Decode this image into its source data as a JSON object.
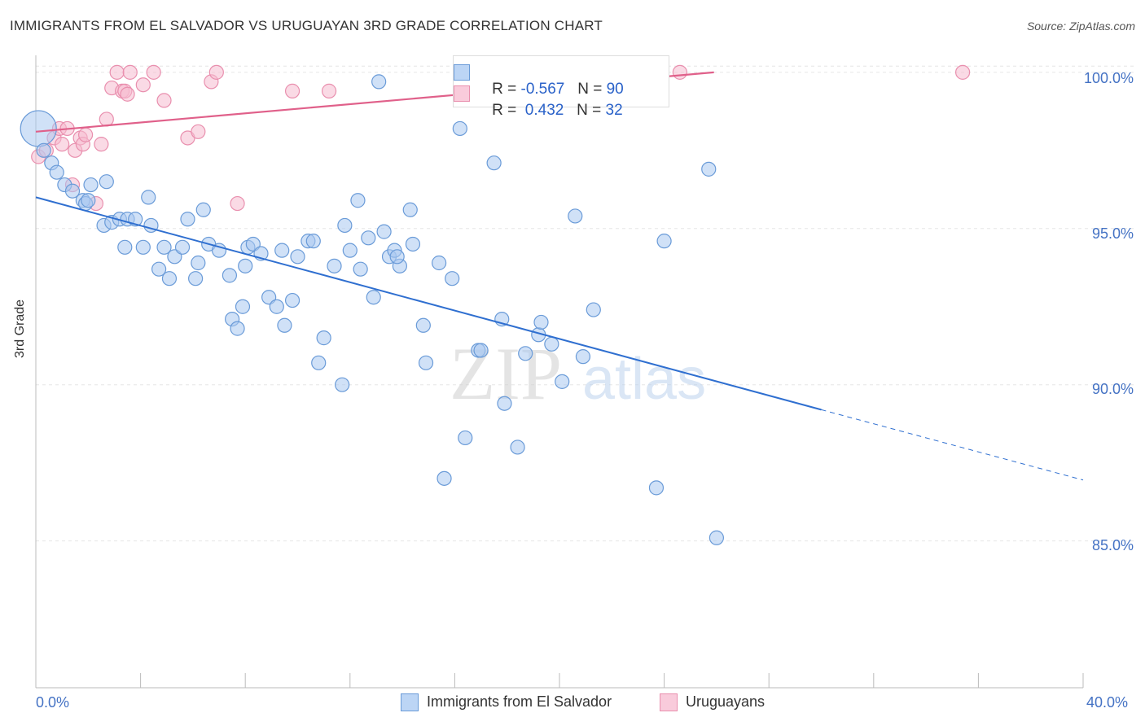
{
  "header": {
    "title": "IMMIGRANTS FROM EL SALVADOR VS URUGUAYAN 3RD GRADE CORRELATION CHART",
    "source": "Source: ZipAtlas.com"
  },
  "legend_top": {
    "rows": [
      {
        "r_label": "R = ",
        "r_value": "-0.567",
        "n_label": "N = ",
        "n_value": "90"
      },
      {
        "r_label": "R = ",
        "r_value": "0.432",
        "n_label": "N = ",
        "n_value": "32"
      }
    ]
  },
  "watermark": {
    "zip": "ZIP",
    "atlas": "atlas"
  },
  "colors": {
    "blue_fill": "#aac8f0",
    "blue_stroke": "#6a9bd8",
    "blue_line": "#2f6fd0",
    "pink_fill": "#f6bcd0",
    "pink_stroke": "#e98fae",
    "pink_line": "#e0608a",
    "tick_text": "#4472c4",
    "grid": "#e6e6e6"
  },
  "chart_data": {
    "type": "scatter",
    "title": "IMMIGRANTS FROM EL SALVADOR VS URUGUAYAN 3RD GRADE CORRELATION CHART",
    "xlabel": "",
    "ylabel": "3rd Grade",
    "xlim": [
      0,
      40
    ],
    "ylim": [
      80.3,
      100.7
    ],
    "x_tick_labels": [
      "0.0%",
      "40.0%"
    ],
    "y_ticks": [
      85,
      90,
      95,
      100
    ],
    "y_tick_labels": [
      "85.0%",
      "90.0%",
      "95.0%",
      "100.0%"
    ],
    "grid": true,
    "legend_position": "bottom",
    "series": [
      {
        "name": "Immigrants from El Salvador",
        "color": "#aac8f0",
        "points": [
          [
            0.1,
            98.2
          ],
          [
            0.3,
            97.5
          ],
          [
            0.6,
            97.1
          ],
          [
            0.8,
            96.8
          ],
          [
            1.1,
            96.4
          ],
          [
            1.4,
            96.2
          ],
          [
            1.8,
            95.9
          ],
          [
            1.9,
            95.8
          ],
          [
            2.1,
            96.4
          ],
          [
            2.7,
            96.5
          ],
          [
            2.6,
            95.1
          ],
          [
            2.9,
            95.2
          ],
          [
            3.2,
            95.3
          ],
          [
            3.4,
            94.4
          ],
          [
            3.5,
            95.3
          ],
          [
            3.8,
            95.3
          ],
          [
            4.1,
            94.4
          ],
          [
            4.3,
            96.0
          ],
          [
            4.4,
            95.1
          ],
          [
            4.7,
            93.7
          ],
          [
            4.9,
            94.4
          ],
          [
            5.1,
            93.4
          ],
          [
            5.3,
            94.1
          ],
          [
            5.6,
            94.4
          ],
          [
            5.8,
            95.3
          ],
          [
            6.1,
            93.4
          ],
          [
            6.2,
            93.9
          ],
          [
            6.4,
            95.6
          ],
          [
            6.6,
            94.5
          ],
          [
            7.0,
            94.3
          ],
          [
            7.4,
            93.5
          ],
          [
            7.5,
            92.1
          ],
          [
            7.7,
            91.8
          ],
          [
            7.9,
            92.5
          ],
          [
            8.0,
            93.8
          ],
          [
            8.1,
            94.4
          ],
          [
            8.3,
            94.5
          ],
          [
            8.6,
            94.2
          ],
          [
            8.9,
            92.8
          ],
          [
            9.2,
            92.5
          ],
          [
            9.4,
            94.3
          ],
          [
            9.5,
            91.9
          ],
          [
            9.8,
            92.7
          ],
          [
            10.0,
            94.1
          ],
          [
            10.4,
            94.6
          ],
          [
            10.6,
            94.6
          ],
          [
            10.8,
            90.7
          ],
          [
            11.0,
            91.5
          ],
          [
            11.4,
            93.8
          ],
          [
            11.7,
            90.0
          ],
          [
            11.8,
            95.1
          ],
          [
            12.0,
            94.3
          ],
          [
            12.3,
            95.9
          ],
          [
            12.4,
            93.7
          ],
          [
            12.7,
            94.7
          ],
          [
            12.9,
            92.8
          ],
          [
            13.1,
            99.7
          ],
          [
            13.3,
            94.9
          ],
          [
            13.5,
            94.1
          ],
          [
            13.7,
            94.3
          ],
          [
            13.9,
            93.8
          ],
          [
            14.3,
            95.6
          ],
          [
            14.4,
            94.5
          ],
          [
            14.8,
            91.9
          ],
          [
            14.9,
            90.7
          ],
          [
            15.4,
            93.9
          ],
          [
            15.6,
            87.0
          ],
          [
            15.9,
            93.4
          ],
          [
            16.2,
            98.2
          ],
          [
            16.4,
            88.3
          ],
          [
            16.9,
            91.1
          ],
          [
            17.0,
            91.1
          ],
          [
            17.5,
            97.1
          ],
          [
            17.8,
            92.1
          ],
          [
            17.9,
            89.4
          ],
          [
            18.4,
            88.0
          ],
          [
            18.7,
            91.0
          ],
          [
            19.2,
            91.6
          ],
          [
            19.3,
            92.0
          ],
          [
            19.7,
            91.3
          ],
          [
            20.1,
            90.1
          ],
          [
            20.6,
            95.4
          ],
          [
            20.9,
            90.9
          ],
          [
            21.3,
            92.4
          ],
          [
            23.7,
            86.7
          ],
          [
            24.0,
            94.6
          ],
          [
            25.7,
            96.9
          ],
          [
            26.0,
            85.1
          ],
          [
            13.8,
            94.1
          ],
          [
            2.0,
            95.9
          ]
        ],
        "trend": {
          "x": [
            0.0,
            30.0
          ],
          "y": [
            96.0,
            89.2
          ]
        },
        "trend_extension": {
          "x": [
            30.0,
            40.0
          ],
          "y": [
            89.2,
            86.95
          ]
        }
      },
      {
        "name": "Uruguayans",
        "color": "#f6bcd0",
        "points": [
          [
            0.1,
            97.3
          ],
          [
            0.4,
            97.5
          ],
          [
            0.7,
            97.9
          ],
          [
            0.9,
            98.2
          ],
          [
            1.0,
            97.7
          ],
          [
            1.2,
            98.2
          ],
          [
            1.4,
            96.4
          ],
          [
            1.5,
            97.5
          ],
          [
            1.7,
            97.9
          ],
          [
            1.8,
            97.7
          ],
          [
            1.9,
            98.0
          ],
          [
            2.3,
            95.8
          ],
          [
            2.5,
            97.7
          ],
          [
            2.7,
            98.5
          ],
          [
            2.9,
            99.5
          ],
          [
            3.1,
            100.0
          ],
          [
            3.3,
            99.4
          ],
          [
            3.4,
            99.4
          ],
          [
            3.6,
            100.0
          ],
          [
            4.1,
            99.6
          ],
          [
            4.5,
            100.0
          ],
          [
            4.9,
            99.1
          ],
          [
            5.8,
            97.9
          ],
          [
            6.2,
            98.1
          ],
          [
            6.7,
            99.7
          ],
          [
            6.9,
            100.0
          ],
          [
            7.7,
            95.8
          ],
          [
            9.8,
            99.4
          ],
          [
            11.2,
            99.4
          ],
          [
            24.6,
            100.0
          ],
          [
            35.4,
            100.0
          ],
          [
            3.5,
            99.3
          ]
        ],
        "trend": {
          "x": [
            0.0,
            25.9
          ],
          "y": [
            98.1,
            100.0
          ]
        }
      }
    ]
  }
}
